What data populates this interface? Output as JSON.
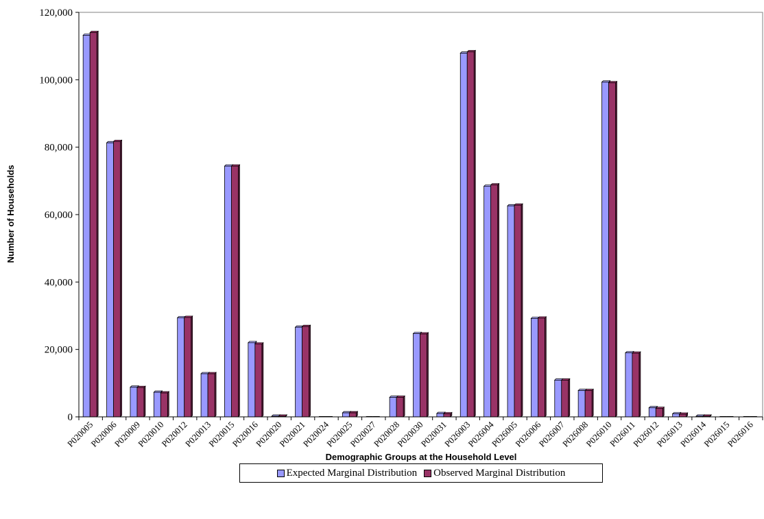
{
  "chart_data": {
    "type": "bar",
    "title": "",
    "xlabel": "Demographic Groups at the Household Level",
    "ylabel": "Number of Households",
    "ylim": [
      0,
      120000
    ],
    "yticks": [
      0,
      20000,
      40000,
      60000,
      80000,
      100000,
      120000
    ],
    "ytick_labels": [
      "0",
      "20,000",
      "40,000",
      "60,000",
      "80,000",
      "100,000",
      "120,000"
    ],
    "grid": false,
    "legend_position": "bottom",
    "categories": [
      "P020005",
      "P020006",
      "P020009",
      "P020010",
      "P020012",
      "P020013",
      "P020015",
      "P020016",
      "P020020",
      "P020021",
      "P020024",
      "P020025",
      "P020027",
      "P020028",
      "P020030",
      "P020031",
      "P026003",
      "P026004",
      "P026005",
      "P026006",
      "P026007",
      "P026008",
      "P026010",
      "P026011",
      "P026012",
      "P026013",
      "P026014",
      "P026015",
      "P026016"
    ],
    "series": [
      {
        "name": "Expected Marginal Distribution",
        "color": "#9999ff",
        "values": [
          113200,
          81300,
          8800,
          7300,
          29400,
          12800,
          74400,
          22000,
          200,
          26600,
          100,
          1200,
          0,
          5800,
          24700,
          1000,
          107900,
          68400,
          62600,
          29200,
          10900,
          7800,
          99300,
          19000,
          2700,
          900,
          200,
          100,
          100
        ]
      },
      {
        "name": "Observed Marginal Distribution",
        "color": "#993366",
        "values": [
          114000,
          81700,
          8700,
          7100,
          29500,
          12800,
          74400,
          21600,
          200,
          26800,
          100,
          1200,
          0,
          5800,
          24600,
          900,
          108300,
          68800,
          62800,
          29300,
          10900,
          7800,
          99100,
          18900,
          2500,
          800,
          200,
          100,
          100
        ]
      }
    ]
  }
}
